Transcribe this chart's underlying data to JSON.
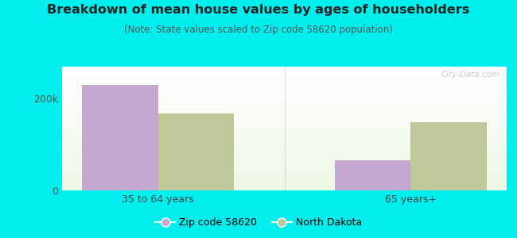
{
  "title": "Breakdown of mean house values by ages of householders",
  "subtitle": "(Note: State values scaled to Zip code 58620 population)",
  "categories": [
    "35 to 64 years",
    "65 years+"
  ],
  "zip_values": [
    230000,
    65000
  ],
  "state_values": [
    168000,
    148000
  ],
  "zip_color": "#c4a8d0",
  "state_color": "#bec898",
  "background_color": "#00eeee",
  "ylim": [
    0,
    270000
  ],
  "ytick_labels": [
    "0",
    "200k"
  ],
  "ytick_values": [
    0,
    200000
  ],
  "legend_zip_label": "Zip code 58620",
  "legend_state_label": "North Dakota",
  "bar_width": 0.3,
  "title_fontsize": 11.5,
  "subtitle_fontsize": 8.5,
  "tick_fontsize": 9,
  "legend_fontsize": 9,
  "watermark_text": "City-Data.com"
}
